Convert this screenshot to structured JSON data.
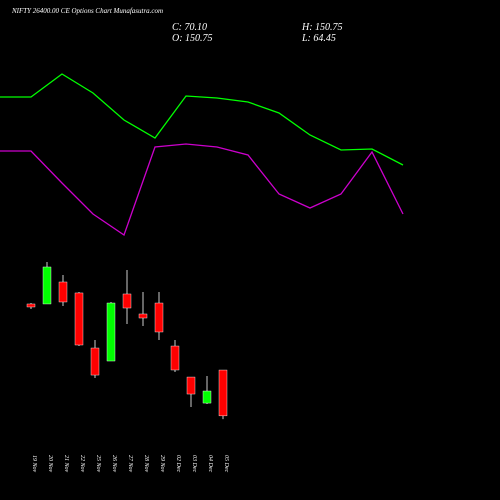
{
  "chart_data": [
    {
      "type": "line",
      "ylim": [
        0,
        300
      ],
      "series": [
        {
          "color": "#00ff00",
          "values": [
            203,
            203,
            226,
            207,
            180,
            162,
            204,
            202,
            198,
            187,
            165,
            150,
            151,
            135
          ]
        },
        {
          "color": "#cc00cc",
          "values": [
            149,
            149,
            117,
            86,
            65,
            153,
            156,
            153,
            145,
            106,
            92,
            106,
            148,
            86
          ]
        }
      ]
    },
    {
      "type": "candlestick",
      "title": "NIFTY 26400.00 CE Options  Chart Munafasutra.com",
      "close_label": "C: 70.10",
      "open_label": "O: 150.75",
      "high_label": "H: 150.75",
      "low_label": "L: 64.45",
      "up_color": "#00ff00",
      "down_color": "#ff0000",
      "ylim": [
        -78,
        802
      ],
      "categories": [
        "19 Nov",
        "20 Nov",
        "21 Nov",
        "22 Nov",
        "25 Nov",
        "26 Nov",
        "27 Nov",
        "28 Nov",
        "29 Nov",
        "02 Dec",
        "03 Dec",
        "04 Dec",
        "05 Dec"
      ],
      "open": [
        267.0,
        267.0,
        305.7,
        286.4,
        189.5,
        166.6,
        284.6,
        249.4,
        268.7,
        193.0,
        138.4,
        92.6,
        150.75
      ],
      "high": [
        268.7,
        340.9,
        318.0,
        288.1,
        203.6,
        270.5,
        326.9,
        288.1,
        288.1,
        203.6,
        138.4,
        140.2,
        150.75
      ],
      "low": [
        258.2,
        267.0,
        263.5,
        193.0,
        136.7,
        166.6,
        231.8,
        228.2,
        203.6,
        147.2,
        85.6,
        90.9,
        64.45
      ],
      "close": [
        261.7,
        332.1,
        270.5,
        194.8,
        141.9,
        268.7,
        259.9,
        242.3,
        217.7,
        150.8,
        108.5,
        113.8,
        70.1
      ]
    }
  ]
}
